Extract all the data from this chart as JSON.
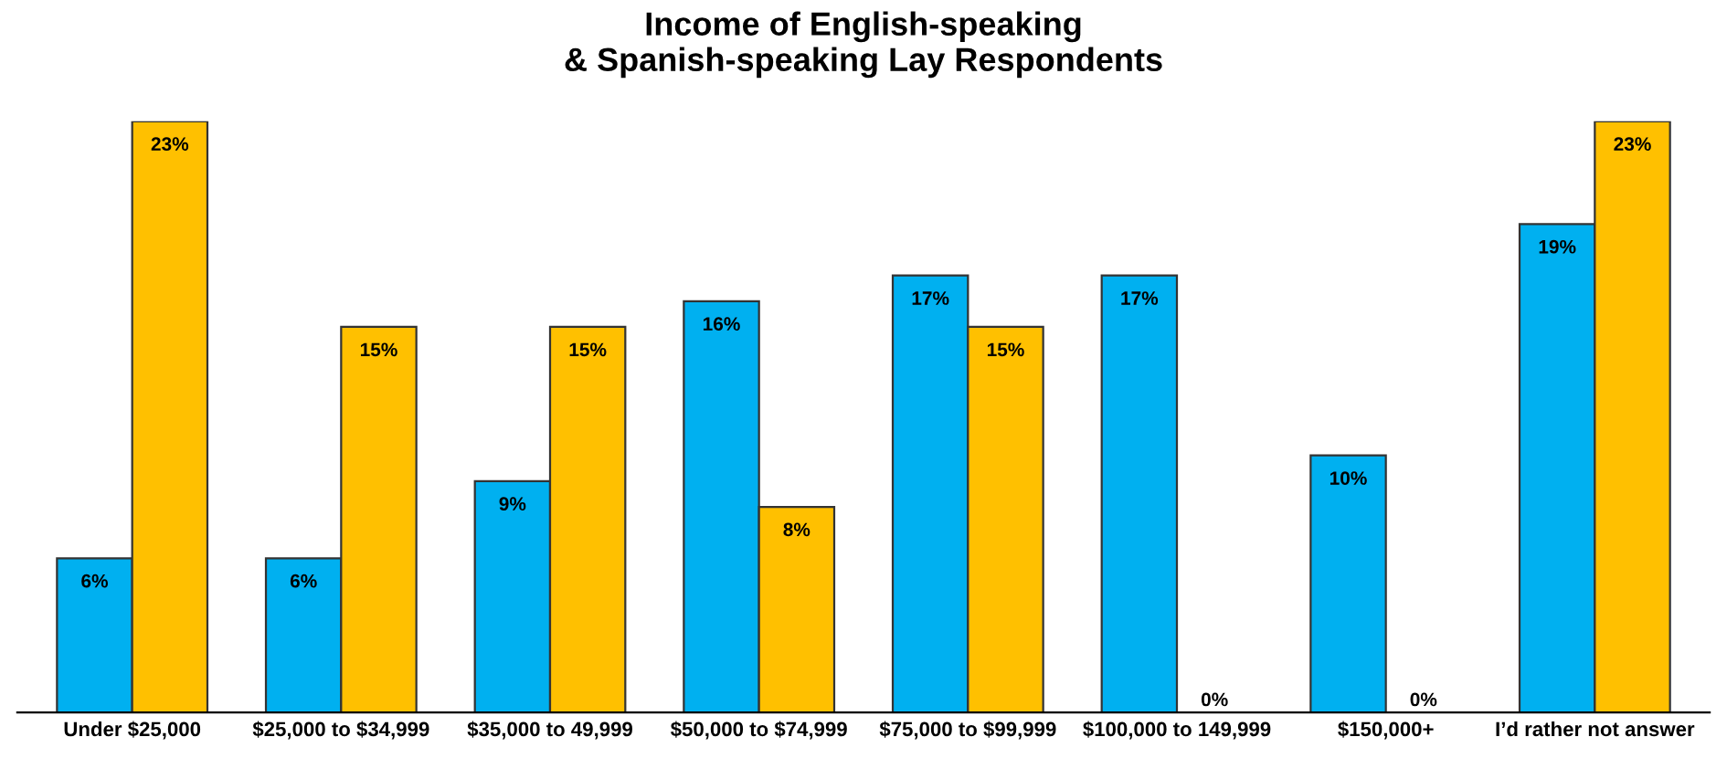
{
  "chart_data": {
    "type": "bar",
    "title": "Income of English-speaking\n& Spanish-speaking Lay Respondents",
    "categories": [
      "Under $25,000",
      "$25,000 to $34,999",
      "$35,000 to 49,999",
      "$50,000 to $74,999",
      "$75,000 to $99,999",
      "$100,000 to 149,999",
      "$150,000+",
      "I’d rather not answer"
    ],
    "series": [
      {
        "color": "#00b0f0",
        "values": [
          6,
          6,
          9,
          16,
          17,
          17,
          10,
          19
        ],
        "value_labels": [
          "6%",
          "6%",
          "9%",
          "16%",
          "17%",
          "17%",
          "10%",
          "19%"
        ]
      },
      {
        "color": "#ffc000",
        "values": [
          23,
          15,
          15,
          8,
          15,
          0,
          0,
          23
        ],
        "value_labels": [
          "23%",
          "15%",
          "15%",
          "8%",
          "15%",
          "0%",
          "0%",
          "23%"
        ]
      }
    ],
    "grid": false,
    "legend": false
  }
}
